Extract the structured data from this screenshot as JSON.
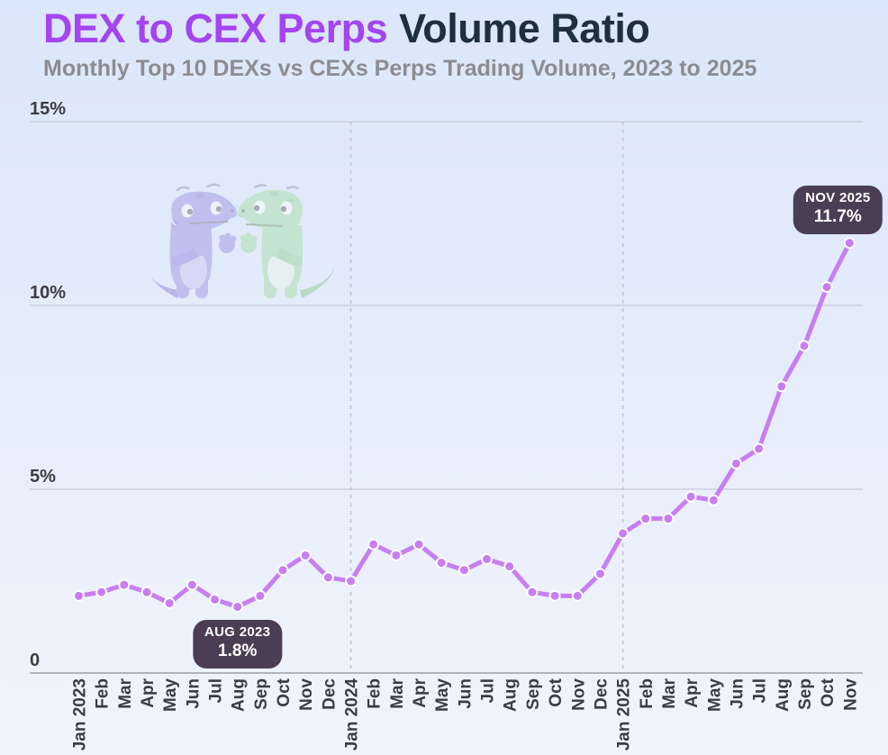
{
  "header": {
    "title_highlight": "DEX to CEX Perps",
    "title_rest": "Volume Ratio",
    "subtitle": "Monthly Top 10 DEXs vs CEXs Perps Trading Volume, 2023 to 2025"
  },
  "colors": {
    "title_highlight": "#a445f1",
    "title_dark": "#1e2f3d",
    "subtitle_gray": "#8c8c92",
    "line_purple": "#c87ef1",
    "point_stroke": "#fdfdff",
    "grid_gray": "#c7cbd4",
    "axis_gray": "#9aa0ab",
    "divider_gray": "#b7bbc5",
    "tick_text": "#3b3d42",
    "badge_bg": "#4a3e55",
    "badge_text": "#ffffff",
    "background_top": "#dbe7fa",
    "background_bottom": "#f1f4fc"
  },
  "chart_data": {
    "type": "line",
    "title": "DEX to CEX Perps Volume Ratio",
    "subtitle": "Monthly Top 10 DEXs vs CEXs Perps Trading Volume, 2023 to 2025",
    "unit": "%",
    "x_labels": [
      "Jan 2023",
      "Feb",
      "Mar",
      "Apr",
      "May",
      "Jun",
      "Jul",
      "Aug",
      "Sep",
      "Oct",
      "Nov",
      "Dec",
      "Jan 2024",
      "Feb",
      "Mar",
      "Apr",
      "May",
      "Jun",
      "Jul",
      "Aug",
      "Sep",
      "Oct",
      "Nov",
      "Dec",
      "Jan 2025",
      "Feb",
      "Mar",
      "Apr",
      "May",
      "Jun",
      "Jul",
      "Aug",
      "Sep",
      "Oct",
      "Nov"
    ],
    "values": [
      2.1,
      2.2,
      2.4,
      2.2,
      1.9,
      2.4,
      2.0,
      1.8,
      2.1,
      2.8,
      3.2,
      2.6,
      2.5,
      3.5,
      3.2,
      3.5,
      3.0,
      2.8,
      3.1,
      2.9,
      2.2,
      2.1,
      2.1,
      2.7,
      3.8,
      4.2,
      4.2,
      4.8,
      4.7,
      5.7,
      6.1,
      7.8,
      8.9,
      10.5,
      11.7
    ],
    "ylim": [
      0,
      15
    ],
    "yticks": [
      {
        "value": 0,
        "label": "0"
      },
      {
        "value": 5,
        "label": "5%"
      },
      {
        "value": 10,
        "label": "10%"
      },
      {
        "value": 15,
        "label": "15%"
      }
    ],
    "year_divider_indices": [
      12,
      24
    ],
    "grid": "horizontal solid gridlines; vertical dashed lines at Jan 2024 and Jan 2025",
    "legend": "none",
    "annotations": [
      {
        "label": "AUG 2023",
        "value_label": "1.8%",
        "x_index": 7,
        "placement": "below"
      },
      {
        "label": "NOV 2025",
        "value_label": "11.7%",
        "x_index": 34,
        "placement": "above-left"
      }
    ]
  }
}
